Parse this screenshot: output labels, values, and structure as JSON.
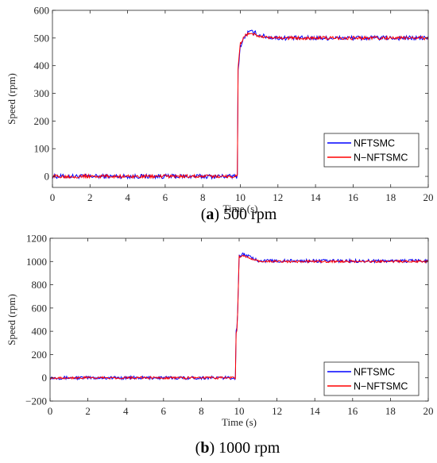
{
  "chart_data": [
    {
      "type": "line",
      "caption_letter": "a",
      "caption_rest": " 500 rpm",
      "xlabel": "Time (s)",
      "ylabel": "Speed (rpm)",
      "xlim": [
        0,
        20
      ],
      "ylim": [
        -40,
        600
      ],
      "xticks": [
        0,
        2,
        4,
        6,
        8,
        10,
        12,
        14,
        16,
        18,
        20
      ],
      "yticks": [
        0,
        100,
        200,
        300,
        400,
        500,
        600
      ],
      "grid": false,
      "legend_position": "bottom-right",
      "series": [
        {
          "name": "NFTSMC",
          "color": "#0000ff",
          "x": [
            0,
            9.85,
            9.86,
            10.0,
            10.2,
            10.4,
            10.6,
            10.8,
            11.0,
            11.5,
            12.0,
            14.0,
            16.0,
            18.0,
            20.0
          ],
          "y": [
            0,
            0,
            370,
            470,
            500,
            520,
            522,
            518,
            510,
            503,
            500,
            500,
            500,
            500,
            500
          ],
          "noise": 8
        },
        {
          "name": "N−NFTSMC",
          "color": "#ff0000",
          "x": [
            0,
            9.85,
            9.86,
            10.0,
            10.2,
            10.4,
            10.6,
            10.8,
            11.0,
            11.5,
            12.0,
            14.0,
            16.0,
            18.0,
            20.0
          ],
          "y": [
            0,
            0,
            380,
            480,
            505,
            515,
            517,
            512,
            505,
            500,
            500,
            500,
            500,
            500,
            500
          ],
          "noise": 6
        }
      ]
    },
    {
      "type": "line",
      "caption_letter": "b",
      "caption_rest": " 1000 rpm",
      "xlabel": "Time (s)",
      "ylabel": "Speed (rpm)",
      "xlim": [
        0,
        20
      ],
      "ylim": [
        -200,
        1200
      ],
      "xticks": [
        0,
        2,
        4,
        6,
        8,
        10,
        12,
        14,
        16,
        18,
        20
      ],
      "yticks": [
        -200,
        0,
        200,
        400,
        600,
        800,
        1000,
        1200
      ],
      "grid": false,
      "legend_position": "bottom-right",
      "series": [
        {
          "name": "NFTSMC",
          "color": "#0000ff",
          "x": [
            0,
            9.8,
            9.82,
            9.9,
            10.0,
            10.2,
            10.4,
            10.6,
            10.8,
            11.0,
            11.5,
            12.0,
            14.0,
            16.0,
            18.0,
            20.0
          ],
          "y": [
            0,
            0,
            380,
            450,
            1050,
            1060,
            1055,
            1035,
            1020,
            1010,
            1005,
            1005,
            1005,
            1005,
            1005,
            1005
          ],
          "noise": 14
        },
        {
          "name": "N−NFTSMC",
          "color": "#ff0000",
          "x": [
            0,
            9.8,
            9.82,
            9.9,
            10.0,
            10.2,
            10.4,
            10.6,
            10.8,
            11.0,
            11.5,
            12.0,
            14.0,
            16.0,
            18.0,
            20.0
          ],
          "y": [
            0,
            0,
            360,
            430,
            1040,
            1045,
            1040,
            1025,
            1010,
            1005,
            1000,
            1000,
            1000,
            1000,
            1000,
            1000
          ],
          "noise": 10
        }
      ]
    }
  ]
}
